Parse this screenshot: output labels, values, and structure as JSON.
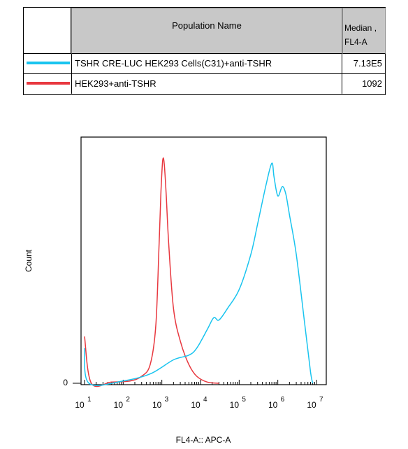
{
  "legend": {
    "header_name": "Population Name",
    "header_median_line1": "Median ,",
    "header_median_line2": "FL4-A",
    "rows": [
      {
        "color": "#19c4ef",
        "name": "TSHR CRE-LUC HEK293 Cells(C31)+anti-TSHR",
        "median": "7.13E5"
      },
      {
        "color": "#e8383f",
        "name": "HEK293+anti-TSHR",
        "median": "1092"
      }
    ]
  },
  "chart_data": {
    "type": "area",
    "xlabel": "FL4-A:: APC-A",
    "ylabel": "Count",
    "x_scale": "log",
    "xlim": [
      10,
      10000000
    ],
    "x_ticks": [
      {
        "base": "10",
        "exp": "1"
      },
      {
        "base": "10",
        "exp": "2"
      },
      {
        "base": "10",
        "exp": "3"
      },
      {
        "base": "10",
        "exp": "4"
      },
      {
        "base": "10",
        "exp": "5"
      },
      {
        "base": "10",
        "exp": "6"
      },
      {
        "base": "10",
        "exp": "7"
      }
    ],
    "y_tick_label": "0",
    "ylim": [
      0,
      100
    ],
    "series": [
      {
        "name": "HEK293+anti-TSHR",
        "color": "#e8383f",
        "points": [
          [
            10,
            20
          ],
          [
            15,
            0
          ],
          [
            50,
            0.5
          ],
          [
            150,
            1
          ],
          [
            300,
            3
          ],
          [
            500,
            8
          ],
          [
            700,
            25
          ],
          [
            850,
            60
          ],
          [
            950,
            82
          ],
          [
            1050,
            95
          ],
          [
            1150,
            94
          ],
          [
            1300,
            80
          ],
          [
            1500,
            60
          ],
          [
            2000,
            32
          ],
          [
            3000,
            18
          ],
          [
            5000,
            8
          ],
          [
            8000,
            3
          ],
          [
            15000,
            0.5
          ],
          [
            30000,
            0
          ]
        ]
      },
      {
        "name": "TSHR CRE-LUC HEK293 Cells(C31)+anti-TSHR",
        "color": "#19c4ef",
        "points": [
          [
            10,
            15
          ],
          [
            13,
            0
          ],
          [
            100,
            1
          ],
          [
            500,
            4
          ],
          [
            2000,
            10
          ],
          [
            5000,
            12
          ],
          [
            8000,
            15
          ],
          [
            15000,
            23
          ],
          [
            22000,
            28
          ],
          [
            30000,
            27
          ],
          [
            50000,
            32
          ],
          [
            100000,
            40
          ],
          [
            200000,
            55
          ],
          [
            300000,
            68
          ],
          [
            500000,
            85
          ],
          [
            700000,
            94
          ],
          [
            800000,
            88
          ],
          [
            1000000,
            80
          ],
          [
            1300000,
            84
          ],
          [
            1600000,
            81
          ],
          [
            2000000,
            72
          ],
          [
            3000000,
            55
          ],
          [
            5000000,
            25
          ],
          [
            7000000,
            5
          ],
          [
            8000000,
            0
          ]
        ]
      }
    ]
  }
}
